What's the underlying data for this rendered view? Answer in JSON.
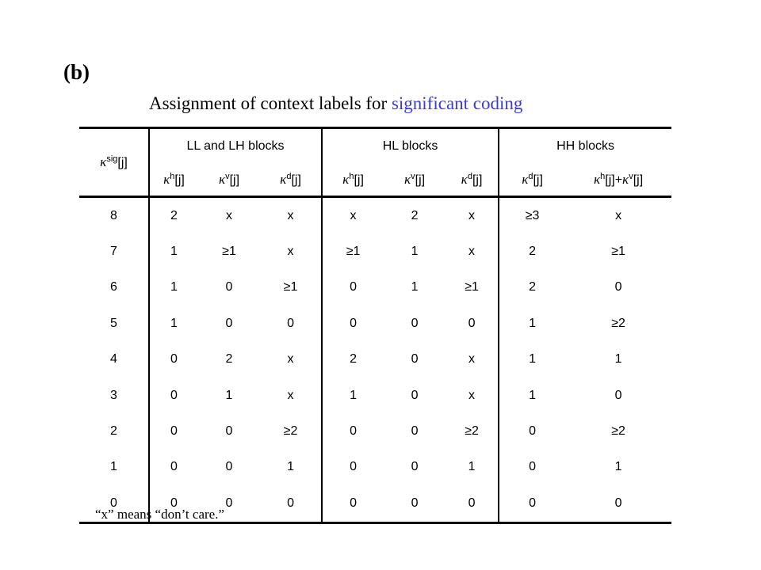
{
  "panel_label": "(b)",
  "title": {
    "prefix": "Assignment of context labels for ",
    "highlight": "significant coding",
    "highlight_color": "#3b3bd6"
  },
  "table": {
    "corner": {
      "symbol": "κ",
      "sup": "sig",
      "suffix": "[j]"
    },
    "groups": [
      "LL and LH blocks",
      "HL blocks",
      "HH blocks"
    ],
    "subheaders": [
      {
        "symbol": "κ",
        "sup": "h",
        "suffix": "[j]"
      },
      {
        "symbol": "κ",
        "sup": "v",
        "suffix": "[j]"
      },
      {
        "symbol": "κ",
        "sup": "d",
        "suffix": "[j]"
      },
      {
        "symbol": "κ",
        "sup": "h",
        "suffix": "[j]"
      },
      {
        "symbol": "κ",
        "sup": "v",
        "suffix": "[j]"
      },
      {
        "symbol": "κ",
        "sup": "d",
        "suffix": "[j]"
      },
      {
        "symbol": "κ",
        "sup": "d",
        "suffix": "[j]"
      },
      {
        "symbol": "κ",
        "sup": "h",
        "suffix": "[j]+",
        "symbol2": "κ",
        "sup2": "v",
        "suffix2": "[j]"
      }
    ],
    "rows": [
      [
        "8",
        "2",
        "x",
        "x",
        "x",
        "2",
        "x",
        "≥3",
        "x"
      ],
      [
        "7",
        "1",
        "≥1",
        "x",
        "≥1",
        "1",
        "x",
        "2",
        "≥1"
      ],
      [
        "6",
        "1",
        "0",
        "≥1",
        "0",
        "1",
        "≥1",
        "2",
        "0"
      ],
      [
        "5",
        "1",
        "0",
        "0",
        "0",
        "0",
        "0",
        "1",
        "≥2"
      ],
      [
        "4",
        "0",
        "2",
        "x",
        "2",
        "0",
        "x",
        "1",
        "1"
      ],
      [
        "3",
        "0",
        "1",
        "x",
        "1",
        "0",
        "x",
        "1",
        "0"
      ],
      [
        "2",
        "0",
        "0",
        "≥2",
        "0",
        "0",
        "≥2",
        "0",
        "≥2"
      ],
      [
        "1",
        "0",
        "0",
        "1",
        "0",
        "0",
        "1",
        "0",
        "1"
      ],
      [
        "0",
        "0",
        "0",
        "0",
        "0",
        "0",
        "0",
        "0",
        "0"
      ]
    ]
  },
  "footnote": "“x” means “don’t care.”"
}
